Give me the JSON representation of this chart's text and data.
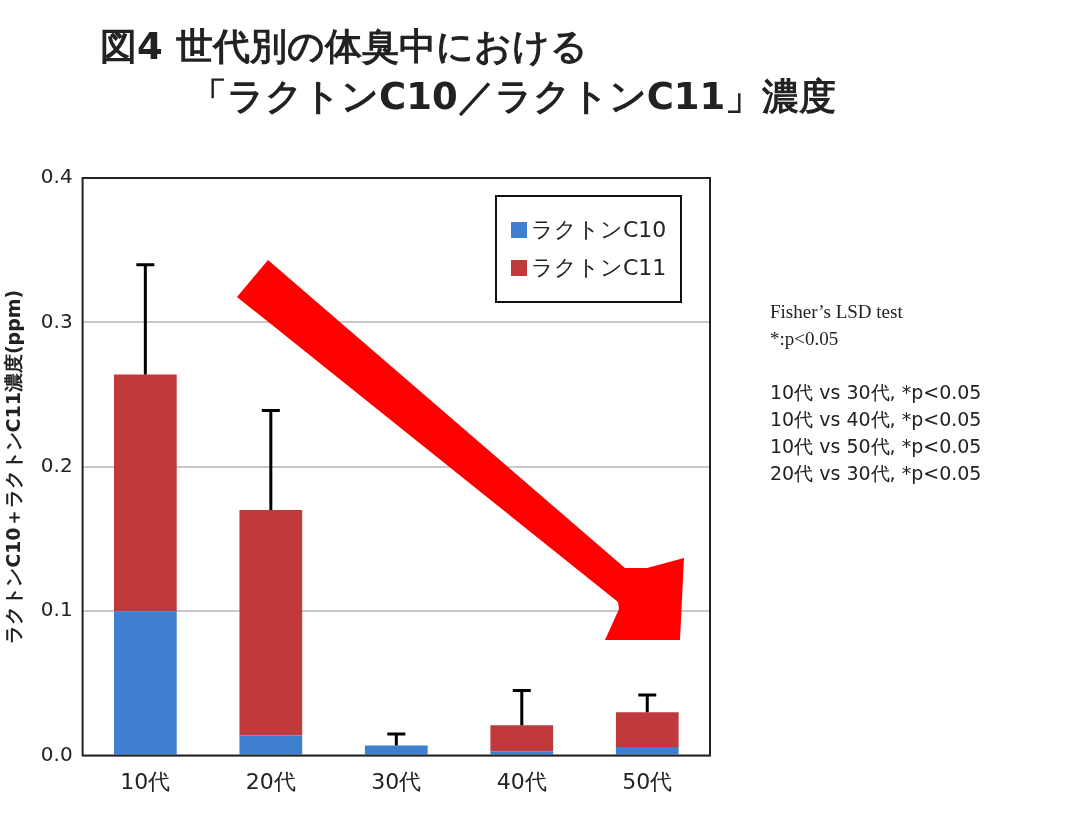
{
  "chart_data": {
    "type": "bar",
    "title": "図4 世代別の体臭中における",
    "subtitle": "「ラクトンC10／ラクトンC11」濃度",
    "ylabel": "ラクトンC10＋ラクトンC11濃度(ppm)",
    "categories": [
      "10代",
      "20代",
      "30代",
      "40代",
      "50代"
    ],
    "stacked": true,
    "series": [
      {
        "name": "ラクトンC10",
        "color": "#3f7fcf",
        "values": [
          0.1,
          0.014,
          0.007,
          0.003,
          0.006
        ]
      },
      {
        "name": "ラクトンC11",
        "color": "#c0393b",
        "values": [
          0.164,
          0.156,
          0,
          0.018,
          0.024
        ],
        "errors": [
          [
            0.264,
            0.34
          ],
          [
            0.17,
            0.239
          ],
          [
            0.007,
            0.015
          ],
          [
            0.021,
            0.045
          ],
          [
            0.03,
            0.042
          ]
        ]
      }
    ],
    "ylim": [
      0,
      0.4
    ],
    "yticks": [
      {
        "value": 0,
        "label": "0.0"
      },
      0.1,
      0.2,
      0.3,
      0.4
    ],
    "grid": "y",
    "legend": "top right",
    "annotations": [
      "Fisher’s LSD test",
      "*:p<0.05",
      "10代 vs 30代, *p<0.05",
      "10代 vs 40代, *p<0.05",
      "10代 vs 50代, *p<0.05",
      "20代 vs 30代, *p<0.05"
    ]
  }
}
